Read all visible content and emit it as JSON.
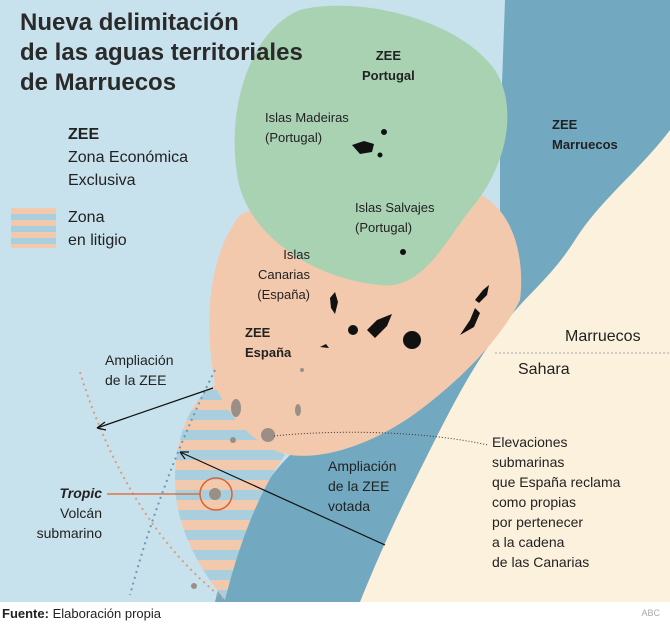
{
  "title": [
    "Nueva delimitación",
    "de las aguas territoriales",
    "de Marruecos"
  ],
  "legend": {
    "zee_abbr": "ZEE",
    "zee_full": [
      "Zona Económica",
      "Exclusiva"
    ],
    "litigio": [
      "Zona",
      "en litigio"
    ]
  },
  "labels": {
    "zee_portugal": [
      "ZEE",
      "Portugal"
    ],
    "madeiras": [
      "Islas Madeiras",
      "(Portugal)"
    ],
    "zee_marruecos": [
      "ZEE",
      "Marruecos"
    ],
    "salvajes": [
      "Islas Salvajes",
      "(Portugal)"
    ],
    "canarias": [
      "Islas",
      "Canarias",
      "(España)"
    ],
    "zee_espana": [
      "ZEE",
      "España"
    ],
    "marruecos": "Marruecos",
    "sahara": "Sahara",
    "ampliacion_zee": [
      "Ampliación",
      "de la ZEE"
    ],
    "ampliacion_votada": [
      "Ampliación",
      "de la ZEE",
      "votada"
    ],
    "tropic": "Tropic",
    "volcan": [
      "Volcán",
      "submarino"
    ],
    "elevaciones": [
      "Elevaciones",
      "submarinas",
      "que España reclama",
      "como propias",
      "por pertenecer",
      "a la cadena",
      "de las Canarias"
    ]
  },
  "footer": {
    "source_label": "Fuente:",
    "source_value": "Elaboración propia",
    "credit": "ABC"
  },
  "colors": {
    "ocean": "#c8e2ed",
    "zee_portugal": "#a9d2b3",
    "zee_espana": "#f3c9ae",
    "zee_marruecos": "#72a9c0",
    "land": "#fcf1dc",
    "islands": "#111111",
    "seamounts": "#9a8f86",
    "tropic_marker": "#e0602e"
  }
}
